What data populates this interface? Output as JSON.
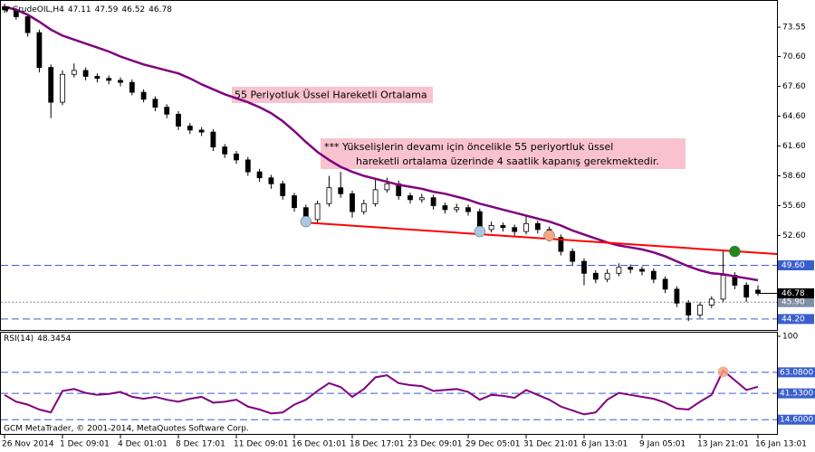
{
  "chart_data": [
    {
      "type": "candlestick",
      "symbol": "CrudeOIL,H4",
      "categories": [
        "26 Nov 2014",
        null,
        null,
        null,
        null,
        "1 Dec 09:01",
        null,
        null,
        null,
        null,
        "4 Dec 01:01",
        null,
        null,
        null,
        null,
        "8 Dec 17:01",
        null,
        null,
        null,
        null,
        "11 Dec 09:01",
        null,
        null,
        null,
        null,
        "16 Dec 01:01",
        null,
        null,
        null,
        null,
        "18 Dec 17:01",
        null,
        null,
        null,
        null,
        "23 Dec 09:01",
        null,
        null,
        null,
        null,
        "29 Dec 05:01",
        null,
        null,
        null,
        null,
        "31 Dec 21:01",
        null,
        null,
        null,
        null,
        "6 Jan 13:01",
        null,
        null,
        null,
        null,
        "9 Jan 05:01",
        null,
        null,
        null,
        null,
        "13 Jan 21:01",
        null,
        null,
        null,
        null,
        "16 Jan 13:01"
      ],
      "open": [
        75.6,
        75.3,
        74.6,
        73.0,
        69.5,
        66.0,
        68.8,
        69.2,
        68.6,
        68.4,
        68.2,
        68.0,
        67.0,
        66.3,
        65.5,
        64.8,
        63.6,
        63.2,
        63.0,
        61.5,
        60.8,
        60.2,
        59.0,
        58.4,
        57.8,
        56.6,
        55.4,
        54.2,
        55.8,
        57.4,
        56.8,
        55.0,
        55.8,
        57.2,
        57.8,
        56.6,
        56.2,
        56.4,
        55.6,
        55.2,
        55.4,
        55.0,
        53.2,
        53.6,
        53.4,
        53.0,
        53.8,
        53.2,
        52.4,
        51.0,
        50.0,
        48.8,
        48.2,
        48.8,
        49.4,
        49.2,
        49.0,
        48.2,
        47.2,
        45.8,
        44.6,
        45.6,
        46.2,
        48.6,
        47.6,
        47.11
      ],
      "high": [
        75.9,
        75.5,
        74.8,
        73.3,
        69.8,
        69.2,
        69.9,
        69.5,
        68.9,
        68.7,
        68.5,
        68.3,
        67.3,
        66.6,
        65.8,
        65.1,
        63.9,
        63.5,
        63.3,
        61.8,
        61.1,
        60.5,
        59.3,
        58.7,
        58.1,
        56.9,
        55.7,
        56.1,
        58.6,
        59.0,
        57.1,
        56.2,
        58.2,
        58.4,
        58.1,
        56.9,
        56.8,
        56.7,
        55.9,
        55.8,
        55.7,
        55.3,
        54.0,
        53.9,
        53.7,
        54.6,
        54.1,
        53.5,
        52.7,
        51.3,
        50.3,
        49.1,
        49.2,
        49.8,
        49.7,
        49.5,
        49.3,
        48.5,
        47.5,
        46.1,
        45.9,
        46.5,
        51.2,
        48.9,
        47.9,
        47.59
      ],
      "low": [
        75.0,
        74.3,
        72.6,
        69.0,
        64.4,
        65.7,
        68.5,
        68.2,
        68.0,
        67.8,
        67.6,
        66.7,
        66.0,
        65.1,
        64.4,
        63.2,
        62.8,
        62.6,
        61.1,
        60.4,
        59.8,
        58.6,
        58.0,
        57.3,
        56.2,
        55.0,
        53.8,
        53.9,
        55.5,
        56.4,
        54.4,
        54.7,
        55.5,
        56.9,
        56.2,
        55.8,
        55.9,
        55.2,
        54.8,
        54.9,
        54.6,
        52.8,
        52.9,
        53.0,
        52.6,
        52.7,
        52.8,
        52.0,
        50.6,
        49.6,
        47.6,
        47.8,
        47.9,
        48.5,
        48.8,
        48.6,
        47.8,
        46.8,
        45.4,
        44.0,
        44.3,
        45.3,
        45.9,
        47.2,
        45.9,
        46.52
      ],
      "close": [
        75.3,
        74.6,
        73.0,
        69.5,
        66.0,
        68.8,
        69.2,
        68.6,
        68.4,
        68.2,
        68.0,
        67.0,
        66.3,
        65.5,
        64.8,
        63.6,
        63.2,
        63.0,
        61.5,
        60.8,
        60.2,
        59.0,
        58.4,
        57.8,
        56.6,
        55.4,
        54.2,
        55.8,
        57.4,
        56.8,
        55.0,
        55.8,
        57.2,
        57.8,
        56.6,
        56.2,
        56.4,
        55.6,
        55.2,
        55.4,
        55.0,
        53.2,
        53.6,
        53.4,
        53.0,
        53.8,
        53.2,
        52.4,
        51.0,
        50.0,
        48.8,
        48.2,
        48.8,
        49.4,
        49.2,
        49.0,
        48.2,
        47.2,
        45.8,
        44.6,
        45.6,
        46.2,
        48.6,
        47.6,
        46.4,
        46.78
      ],
      "up_color": "#ffffff",
      "down_color": "#000000",
      "ylim": [
        43.1,
        76.1
      ],
      "yticks": [
        73.55,
        {
          "value": 70.6,
          "label": "70.60"
        },
        {
          "value": 67.6,
          "label": "67.60"
        },
        {
          "value": 64.6,
          "label": "64.60"
        },
        {
          "value": 61.6,
          "label": "61.60"
        },
        {
          "value": 58.6,
          "label": "58.60"
        },
        {
          "value": 55.6,
          "label": "55.60"
        },
        {
          "value": 52.6,
          "label": "52.60"
        }
      ],
      "moving_average": {
        "name": "55 Periyotluk Üssel Hareketli Ortalama",
        "color": "#800080",
        "values": [
          75.6,
          75.3,
          74.8,
          74.1,
          73.3,
          72.7,
          72.3,
          71.9,
          71.5,
          71.1,
          70.6,
          70.2,
          69.8,
          69.5,
          69.2,
          68.9,
          68.4,
          67.8,
          67.3,
          66.8,
          66.4,
          66.0,
          65.5,
          64.9,
          64.1,
          63.1,
          62.0,
          61.0,
          60.2,
          59.5,
          59.0,
          58.6,
          58.3,
          58.0,
          57.7,
          57.5,
          57.3,
          57.0,
          56.8,
          56.5,
          56.2,
          55.8,
          55.5,
          55.2,
          54.9,
          54.6,
          54.3,
          54.0,
          53.6,
          53.1,
          52.7,
          52.3,
          51.9,
          51.6,
          51.4,
          51.2,
          50.9,
          50.5,
          50.0,
          49.5,
          49.1,
          48.8,
          48.7,
          48.5,
          48.3,
          48.1
        ]
      },
      "trendline": {
        "color": "#ff0000",
        "x": [
          26,
          65
        ],
        "values": [
          53.9,
          50.86
        ]
      },
      "levels": [
        {
          "value": 49.6,
          "label": "49.60",
          "color": "#3a5fcd"
        },
        {
          "value": 45.9,
          "label": "45.90",
          "color": "#7f8fa6"
        },
        {
          "value": 44.2,
          "label": "44.20",
          "color": "#3a5fcd"
        }
      ],
      "markers": [
        {
          "x": 26,
          "value": 54.0,
          "color": "#a6c8e6"
        },
        {
          "x": 41,
          "value": 53.0,
          "color": "#a6c8e6"
        },
        {
          "x": 47,
          "value": 52.6,
          "color": "#f4a582"
        },
        {
          "x": 63,
          "value": 51.0,
          "color": "#1f8b1f"
        }
      ],
      "annotation": [
        "*** Yükselişlerin devamı için öncelikle 55 periyortluk üssel",
        "hareketli ortalama üzerinde 4 saatlik kapanış gerekmektedir."
      ]
    },
    {
      "type": "line",
      "title": "RSI(14)",
      "color": "#800080",
      "values": [
        40,
        33,
        30,
        25,
        22,
        44,
        46,
        42,
        40,
        41,
        43,
        38,
        36,
        38,
        35,
        33,
        36,
        38,
        32,
        33,
        35,
        28,
        25,
        21,
        22,
        30,
        35,
        44,
        52,
        48,
        38,
        46,
        58,
        60,
        52,
        50,
        49,
        44,
        45,
        46,
        43,
        35,
        40,
        39,
        37,
        45,
        40,
        35,
        28,
        24,
        20,
        22,
        35,
        42,
        40,
        38,
        36,
        32,
        26,
        25,
        33,
        40,
        65,
        55,
        45,
        48.3454
      ],
      "ylim": [
        0,
        100
      ],
      "yticks": [
        100,
        {
          "value": 63.08,
          "label": "63.0800"
        },
        {
          "value": 41.53,
          "label": "41.5300"
        },
        {
          "value": 14.6,
          "label": "14.6000"
        }
      ],
      "markers": [
        {
          "x": 62,
          "value": 63.5,
          "color": "#f4a582"
        }
      ],
      "copyright": "GCM MetaTrader, © 2001-2014, MetaQuotes Software Corp."
    }
  ]
}
